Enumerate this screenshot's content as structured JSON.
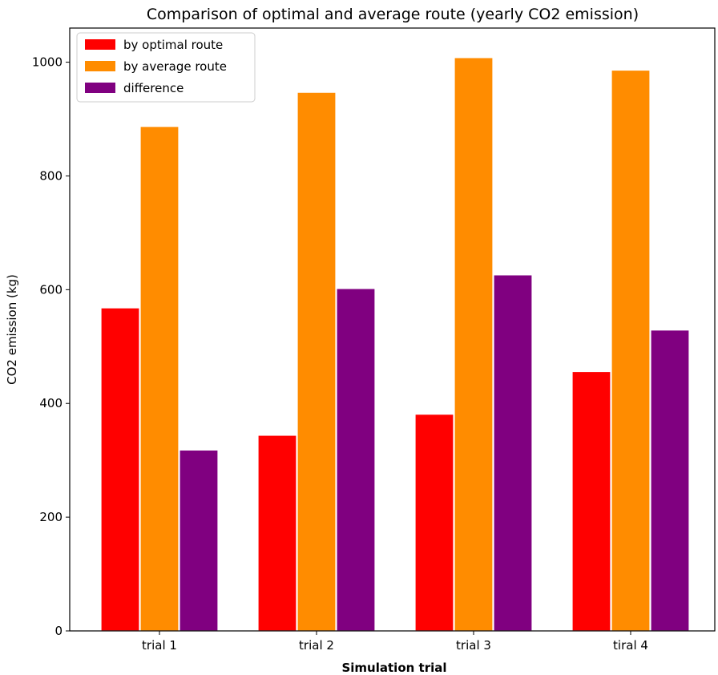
{
  "chart_data": {
    "type": "bar",
    "title": "Comparison of optimal and average route (yearly CO2 emission)",
    "xlabel": "Simulation trial",
    "ylabel": "CO2 emission (kg)",
    "categories": [
      "trial 1",
      "trial 2",
      "trial 3",
      "tiral 4"
    ],
    "series": [
      {
        "name": "by optimal route",
        "color": "#ff0000",
        "values": [
          568,
          344,
          381,
          456
        ]
      },
      {
        "name": "by average route",
        "color": "#ff8c00",
        "values": [
          887,
          947,
          1008,
          986
        ]
      },
      {
        "name": "difference",
        "color": "#800080",
        "values": [
          318,
          602,
          626,
          529
        ]
      }
    ],
    "ylim": [
      0,
      1060
    ],
    "yticks": [
      0,
      200,
      400,
      600,
      800,
      1000
    ],
    "grid": false,
    "legend_position": "top-left"
  }
}
